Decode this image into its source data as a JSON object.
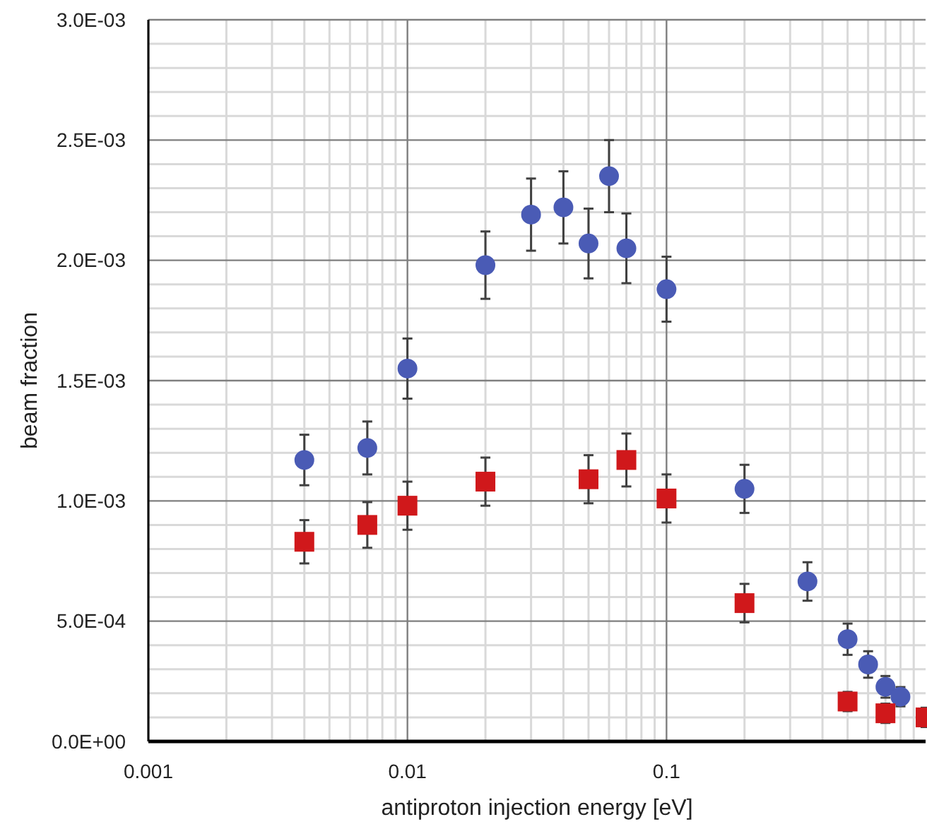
{
  "chart_data": {
    "type": "scatter",
    "xlabel": "antiproton injection energy [eV]",
    "ylabel": "beam fraction",
    "log": "x",
    "grid": true,
    "xlim": [
      0.001,
      1
    ],
    "xticks": [
      0.001,
      0.01,
      0.1
    ],
    "ylim": [
      0,
      0.003
    ],
    "yticks": [
      {
        "value": 0,
        "label": "0.0E+00"
      },
      {
        "value": 0.0005,
        "label": "5.0E-04"
      },
      {
        "value": 0.001,
        "label": "1.0E-03"
      },
      {
        "value": 0.0015,
        "label": "1.5E-03"
      },
      {
        "value": 0.002,
        "label": "2.0E-03"
      },
      {
        "value": 0.0025,
        "label": "2.5E-03"
      },
      {
        "value": 0.003,
        "label": "3.0E-03"
      }
    ],
    "series": [
      {
        "color": "#4a5bb5",
        "marker": "circle",
        "x": [
          0.004,
          0.007,
          0.01,
          0.02,
          0.03,
          0.04,
          0.05,
          0.06,
          0.07,
          0.1,
          0.2,
          0.35,
          0.5,
          0.6,
          0.7,
          0.8
        ],
        "values": [
          0.00117,
          0.00122,
          0.00155,
          0.00198,
          0.00219,
          0.00222,
          0.00207,
          0.00235,
          0.00205,
          0.00188,
          0.00105,
          0.000665,
          0.000425,
          0.00032,
          0.000227,
          0.000186
        ],
        "errors": [
          0.000105,
          0.00011,
          0.000125,
          0.00014,
          0.00015,
          0.00015,
          0.000145,
          0.00015,
          0.000145,
          0.000135,
          0.0001,
          8e-05,
          6.5e-05,
          5.5e-05,
          4.5e-05,
          4e-05
        ]
      },
      {
        "color": "#d0181b",
        "marker": "square",
        "x": [
          0.004,
          0.007,
          0.01,
          0.02,
          0.05,
          0.07,
          0.1,
          0.2,
          0.5,
          0.7,
          1
        ],
        "values": [
          0.00083,
          0.0009,
          0.00098,
          0.00108,
          0.00109,
          0.00117,
          0.00101,
          0.000575,
          0.000166,
          0.000117,
          0.0001
        ],
        "errors": [
          9e-05,
          9.5e-05,
          0.0001,
          0.0001,
          0.0001,
          0.00011,
          0.0001,
          8e-05,
          4e-05,
          4e-05,
          4e-05
        ]
      }
    ]
  }
}
